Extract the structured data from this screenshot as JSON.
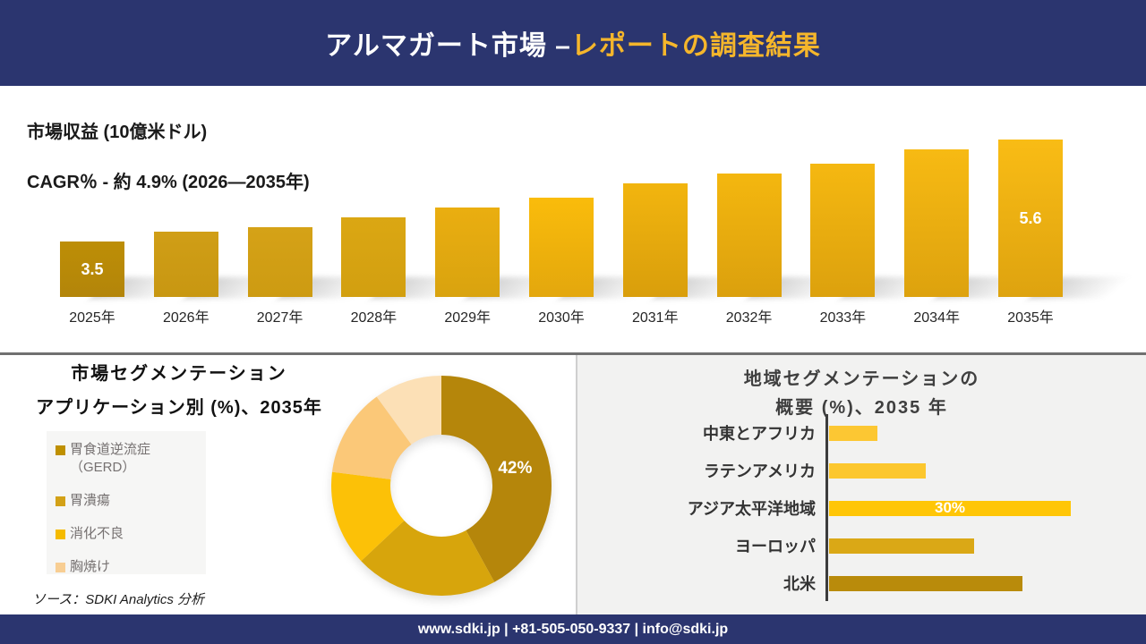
{
  "colors": {
    "navy": "#2B356F",
    "title_yellow": "#F5B62B",
    "divider_gray": "#707070",
    "right_panel_bg": "#F2F2F1"
  },
  "header": {
    "title_white": "アルマガート市場 –",
    "title_yellow": "レポートの調査結果"
  },
  "revenue_section": {
    "metric_line": "市場収益 (10億米ドル)",
    "cagr_line": "CAGR％ - 約 4.9% (2026―2035年)"
  },
  "segmentation_panel": {
    "title": "市場セグメンテーション",
    "subtitle": "アプリケーション別 (%)、2035年",
    "source_line": "ソース：SDKI Analytics 分析"
  },
  "regional_panel": {
    "title_line1": "地域セグメンテーションの",
    "title_line2": "概要 (%)、2035 年"
  },
  "footer": {
    "contact_line": "www.sdki.jp | +81-505-050-9337 | info@sdki.jp"
  },
  "chart_data": [
    {
      "type": "bar",
      "title": "市場収益 (10億米ドル)",
      "subtitle": "CAGR％ - 約 4.9% (2026―2035年)",
      "categories": [
        "2025年",
        "2026年",
        "2027年",
        "2028年",
        "2029年",
        "2030年",
        "2031年",
        "2032年",
        "2033年",
        "2034年",
        "2035年"
      ],
      "values": [
        3.5,
        3.7,
        3.8,
        4.0,
        4.2,
        4.4,
        4.7,
        4.9,
        5.1,
        5.4,
        5.6
      ],
      "data_labels": {
        "0": "3.5",
        "10": "5.6"
      },
      "value_axis_note": "only first and last bars labeled",
      "bar_colors": [
        [
          "#BD8E06",
          "#B3850A"
        ],
        [
          "#D09E16",
          "#C89712"
        ],
        [
          "#D5A217",
          "#CD9B12"
        ],
        [
          "#DBA713",
          "#D29F10"
        ],
        [
          "#EAAE10",
          "#D9A30F"
        ],
        [
          "#FABC0B",
          "#E3A70D"
        ],
        [
          "#F2B50E",
          "#D99E0C"
        ],
        [
          "#F4B70F",
          "#DBA00D"
        ],
        [
          "#F5B811",
          "#DCA10D"
        ],
        [
          "#F7BA13",
          "#DDA20E"
        ],
        [
          "#F9BC15",
          "#DEA30F"
        ]
      ]
    },
    {
      "type": "pie",
      "style": "donut",
      "title": "市場セグメンテーション アプリケーション別 (%)、2035年",
      "slices": [
        {
          "label": "胃食道逆流症（GERD）",
          "value": 42,
          "color": "#B5860B",
          "data_label": "42%"
        },
        {
          "label": "胃潰瘍",
          "value": 21,
          "color": "#D7A50C"
        },
        {
          "label": "消化不良",
          "value": 14,
          "color": "#FCC107"
        },
        {
          "label": "胸焼け",
          "value": 13,
          "color": "#FBC878"
        },
        {
          "label": "",
          "value": 10,
          "color": "#FCE0B6"
        }
      ],
      "legend": [
        {
          "label": "胃食道逆流症（GERD）",
          "color": "#BF9000"
        },
        {
          "label": "胃潰瘍",
          "color": "#D3A117"
        },
        {
          "label": "消化不良",
          "color": "#F5BB00"
        },
        {
          "label": "胸焼け",
          "color": "#F8CE93"
        }
      ],
      "legend_position": "left"
    },
    {
      "type": "bar-horizontal",
      "title": "地域セグメンテーションの概要 (%)、2035 年",
      "categories": [
        "中東とアフリカ",
        "ラテンアメリカ",
        "アジア太平洋地域",
        "ヨーロッパ",
        "北米"
      ],
      "values": [
        6,
        12,
        30,
        18,
        24
      ],
      "data_label": {
        "index": 2,
        "text": "30%"
      },
      "colors": [
        "#FCC733",
        "#FCC72E",
        "#FFC607",
        "#DAA816",
        "#B98B0B"
      ]
    }
  ]
}
